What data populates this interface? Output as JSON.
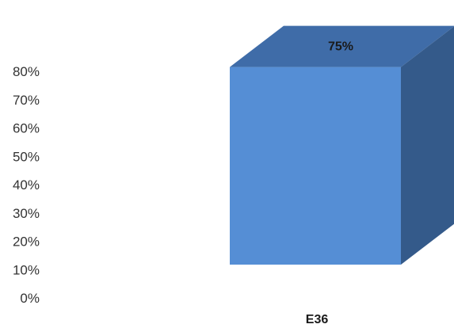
{
  "chart_data": {
    "type": "bar",
    "style": "3d-column",
    "categories": [
      "E36"
    ],
    "values": [
      75
    ],
    "data_labels": [
      "75%"
    ],
    "ylim": [
      0,
      80
    ],
    "yticks": [
      "0%",
      "10%",
      "20%",
      "30%",
      "40%",
      "50%",
      "60%",
      "70%",
      "80%"
    ],
    "title": "",
    "xlabel": "",
    "ylabel": "",
    "grid": false,
    "legend": "none",
    "colors": {
      "front": "#558ED5",
      "top": "#3F6CA8",
      "side": "#345A8A"
    }
  }
}
